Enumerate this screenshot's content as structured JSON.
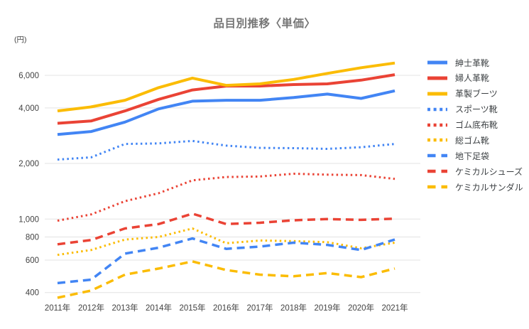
{
  "title": "品目別推移〈単価〉",
  "y_axis": {
    "unit_label": "(円)",
    "scale": "log",
    "tick_values": [
      6000,
      4000,
      2000,
      1000,
      800,
      600,
      400
    ],
    "tick_labels": [
      "6,000",
      "4,000",
      "2,000",
      "1,000",
      "800",
      "600",
      "400"
    ]
  },
  "x_axis": {
    "labels": [
      "2011年",
      "2012年",
      "2013年",
      "2014年",
      "2015年",
      "2016年",
      "2017年",
      "2018年",
      "2019年",
      "2020年",
      "2021年"
    ]
  },
  "colors": {
    "blue": "#4285F4",
    "red": "#EA4335",
    "yellow": "#FBBC04",
    "grid": "#E3E3E3",
    "title_text": "#757575",
    "axis_text": "#424242",
    "legend_text": "#3C4043",
    "background": "#FFFFFF"
  },
  "chart_data": {
    "type": "line",
    "title": "品目別推移〈単価〉",
    "xlabel": "",
    "ylabel": "(円)",
    "yscale": "log",
    "ylim": [
      360,
      7600
    ],
    "grid": true,
    "legend_position": "right",
    "x": [
      "2011年",
      "2012年",
      "2013年",
      "2014年",
      "2015年",
      "2016年",
      "2017年",
      "2018年",
      "2019年",
      "2020年",
      "2021年"
    ],
    "series": [
      {
        "name": "紳士革靴",
        "color": "blue",
        "style": "solid",
        "values": [
          2870,
          2980,
          3350,
          3950,
          4350,
          4400,
          4400,
          4550,
          4750,
          4500,
          4950
        ]
      },
      {
        "name": "婦人革靴",
        "color": "red",
        "style": "solid",
        "values": [
          3300,
          3400,
          3850,
          4450,
          5000,
          5250,
          5250,
          5350,
          5400,
          5650,
          6050
        ]
      },
      {
        "name": "革製ブーツ",
        "color": "yellow",
        "style": "solid",
        "values": [
          3850,
          4050,
          4400,
          5150,
          5800,
          5300,
          5400,
          5700,
          6150,
          6600,
          7000
        ]
      },
      {
        "name": "スポーツ靴",
        "color": "blue",
        "style": "dotted",
        "values": [
          2100,
          2160,
          2550,
          2570,
          2650,
          2500,
          2430,
          2420,
          2400,
          2450,
          2550
        ]
      },
      {
        "name": "ゴム底布靴",
        "color": "red",
        "style": "dotted",
        "values": [
          980,
          1060,
          1250,
          1380,
          1620,
          1690,
          1700,
          1760,
          1740,
          1730,
          1650
        ]
      },
      {
        "name": "総ゴム靴",
        "color": "yellow",
        "style": "dotted",
        "values": [
          640,
          680,
          775,
          800,
          890,
          740,
          765,
          760,
          750,
          695,
          745
        ]
      },
      {
        "name": "地下足袋",
        "color": "blue",
        "style": "dashed",
        "values": [
          450,
          470,
          650,
          700,
          785,
          690,
          710,
          745,
          725,
          680,
          775
        ]
      },
      {
        "name": "ケミカルシューズ",
        "color": "red",
        "style": "dashed",
        "values": [
          730,
          770,
          890,
          940,
          1070,
          940,
          955,
          985,
          1000,
          990,
          1005
        ]
      },
      {
        "name": "ケミカルサンダル",
        "color": "yellow",
        "style": "dashed",
        "values": [
          375,
          410,
          500,
          540,
          590,
          530,
          500,
          490,
          510,
          485,
          540
        ]
      }
    ]
  }
}
